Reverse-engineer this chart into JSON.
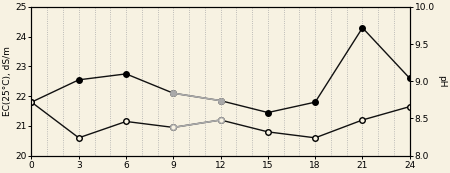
{
  "x": [
    0,
    3,
    6,
    9,
    12,
    15,
    18,
    21,
    24
  ],
  "ec_filled": [
    21.8,
    22.55,
    22.75,
    22.1,
    21.85,
    21.45,
    21.8,
    24.3,
    22.6
  ],
  "ec_open": [
    21.8,
    20.6,
    21.15,
    20.95,
    21.2,
    20.8,
    20.6,
    21.2,
    21.65
  ],
  "gray_x": [
    9,
    12
  ],
  "gray_filled": [
    22.1,
    21.85
  ],
  "gray_open": [
    20.95,
    21.2
  ],
  "gray_mid_x": [
    10.5
  ],
  "gray_mid_filled": [
    22.1
  ],
  "gray_mid_open": [
    21.5
  ],
  "ylim_left": [
    20,
    25
  ],
  "ylim_right": [
    8.0,
    10.0
  ],
  "xticks": [
    0,
    3,
    6,
    9,
    12,
    15,
    18,
    21,
    24
  ],
  "yticks_left": [
    20,
    21,
    22,
    23,
    24,
    25
  ],
  "yticks_right": [
    8.0,
    8.5,
    9.0,
    9.5,
    10.0
  ],
  "ylabel_left": "EC(25°C), dS/m",
  "ylabel_right": "pH",
  "bg_color": "#f7f2e2",
  "grid_color": "#aaaaaa",
  "line_color_dark": "#111111",
  "line_color_gray": "#aaaaaa",
  "vlines_x": [
    1,
    2,
    3,
    4,
    5,
    6,
    7,
    8,
    9,
    10,
    11,
    12,
    13,
    14,
    15,
    16,
    17,
    18,
    19,
    20,
    21,
    22,
    23
  ]
}
